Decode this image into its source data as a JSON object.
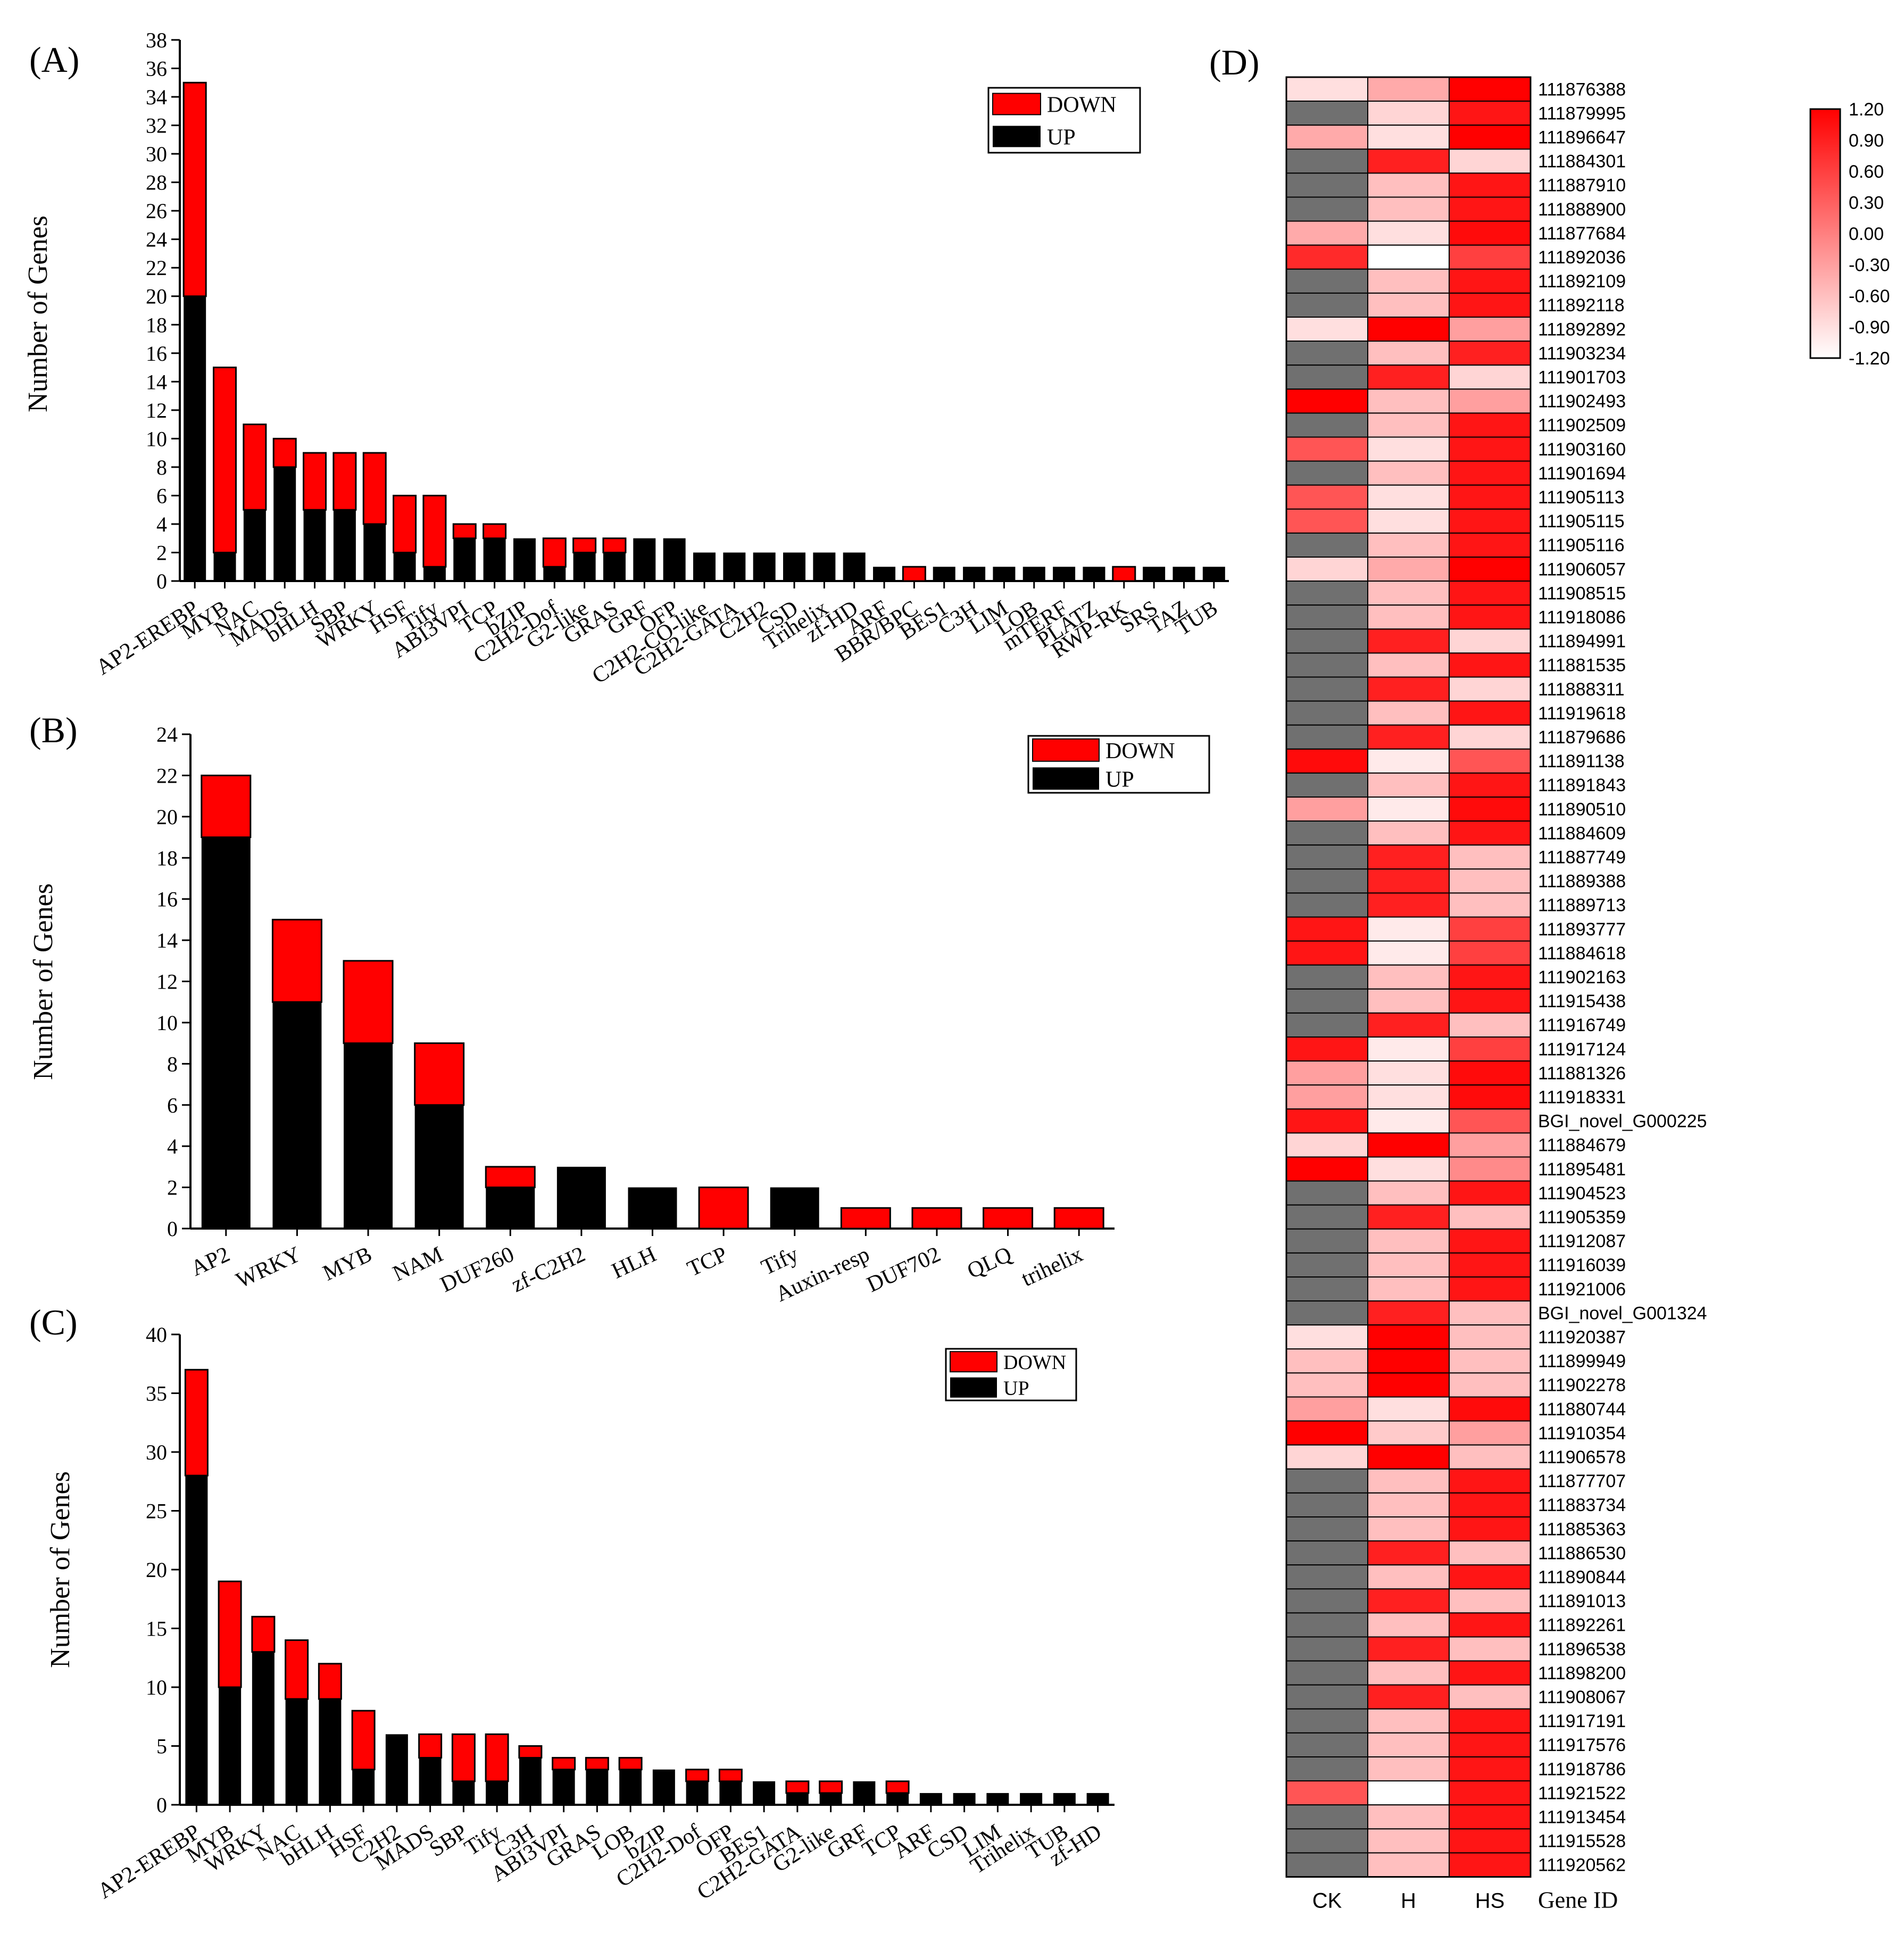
{
  "colors": {
    "up": "#000000",
    "down": "#ff0000",
    "missing": "#707070",
    "heat_high": "#ff0000",
    "heat_low": "#ffffff"
  },
  "chart_data": [
    {
      "panel": "(A)",
      "type": "bar",
      "stacked": true,
      "ylabel": "Number of Genes",
      "ylim": [
        0,
        38
      ],
      "yticks": [
        0,
        2,
        4,
        6,
        8,
        10,
        12,
        14,
        16,
        18,
        20,
        22,
        24,
        26,
        28,
        30,
        32,
        34,
        36,
        38
      ],
      "legend": {
        "position": "top-right",
        "entries": [
          "DOWN",
          "UP"
        ]
      },
      "categories": [
        "AP2-EREBP",
        "MYB",
        "NAC",
        "MADS",
        "bHLH",
        "SBP",
        "WRKY",
        "HSF",
        "Tify",
        "ABI3VPI",
        "TCP",
        "bZIP",
        "C2H2-Dof",
        "G2-like",
        "GRAS",
        "GRF",
        "OFP",
        "C2H2-CO-like",
        "C2H2-GATA",
        "C2H2",
        "CSD",
        "Trihelix",
        "zf-HD",
        "ARF",
        "BBR/BPC",
        "BES1",
        "C3H",
        "LIM",
        "LOB",
        "mTERF",
        "PLATZ",
        "RWP-RK",
        "SRS",
        "TAZ",
        "TUB"
      ],
      "series": [
        {
          "name": "UP",
          "values": [
            20,
            2,
            5,
            8,
            5,
            5,
            4,
            2,
            1,
            3,
            3,
            3,
            1,
            2,
            2,
            3,
            3,
            2,
            2,
            2,
            2,
            2,
            2,
            1,
            0,
            1,
            1,
            1,
            1,
            1,
            1,
            0,
            1,
            1,
            1
          ]
        },
        {
          "name": "DOWN",
          "values": [
            15,
            13,
            6,
            2,
            4,
            4,
            5,
            4,
            5,
            1,
            1,
            0,
            2,
            1,
            1,
            0,
            0,
            0,
            0,
            0,
            0,
            0,
            0,
            0,
            1,
            0,
            0,
            0,
            0,
            0,
            0,
            1,
            0,
            0,
            0
          ]
        }
      ]
    },
    {
      "panel": "(B)",
      "type": "bar",
      "stacked": true,
      "ylabel": "Number of Genes",
      "ylim": [
        0,
        24
      ],
      "yticks": [
        0,
        2,
        4,
        6,
        8,
        10,
        12,
        14,
        16,
        18,
        20,
        22,
        24
      ],
      "legend": {
        "position": "top-right",
        "entries": [
          "DOWN",
          "UP"
        ]
      },
      "categories": [
        "AP2",
        "WRKY",
        "MYB",
        "NAM",
        "DUF260",
        "zf-C2H2",
        "HLH",
        "TCP",
        "Tify",
        "Auxin-resp",
        "DUF702",
        "QLQ",
        "trihelix"
      ],
      "series": [
        {
          "name": "UP",
          "values": [
            19,
            11,
            9,
            6,
            2,
            3,
            2,
            0,
            2,
            0,
            0,
            0,
            0
          ]
        },
        {
          "name": "DOWN",
          "values": [
            3,
            4,
            4,
            3,
            1,
            0,
            0,
            2,
            0,
            1,
            1,
            1,
            1
          ]
        }
      ]
    },
    {
      "panel": "(C)",
      "type": "bar",
      "stacked": true,
      "ylabel": "Number of Genes",
      "ylim": [
        0,
        40
      ],
      "yticks": [
        0,
        5,
        10,
        15,
        20,
        25,
        30,
        35,
        40
      ],
      "legend": {
        "position": "top-right",
        "entries": [
          "DOWN",
          "UP"
        ]
      },
      "categories": [
        "AP2-EREBP",
        "MYB",
        "WRKY",
        "NAC",
        "bHLH",
        "HSF",
        "C2H2",
        "MADS",
        "SBP",
        "Tify",
        "C3H",
        "ABI3VPI",
        "GRAS",
        "LOB",
        "bZIP",
        "C2H2-Dof",
        "OFP",
        "BES1",
        "C2H2-GATA",
        "G2-like",
        "GRF",
        "TCP",
        "ARF",
        "CSD",
        "LIM",
        "Trihelix",
        "TUB",
        "zf-HD"
      ],
      "series": [
        {
          "name": "UP",
          "values": [
            28,
            10,
            13,
            9,
            9,
            3,
            6,
            4,
            2,
            2,
            4,
            3,
            3,
            3,
            3,
            2,
            2,
            2,
            1,
            1,
            2,
            1,
            1,
            1,
            1,
            1,
            1,
            1
          ]
        },
        {
          "name": "DOWN",
          "values": [
            9,
            9,
            3,
            5,
            3,
            5,
            0,
            2,
            4,
            4,
            1,
            1,
            1,
            1,
            0,
            1,
            1,
            0,
            1,
            1,
            0,
            1,
            0,
            0,
            0,
            0,
            0,
            0
          ]
        }
      ]
    },
    {
      "panel": "(D)",
      "type": "heatmap",
      "x_categories": [
        "CK",
        "H",
        "HS"
      ],
      "row_header": "Gene ID",
      "colorbar": {
        "ticks": [
          "1.20",
          "0.90",
          "0.60",
          "0.30",
          "0.00",
          "-0.30",
          "-0.60",
          "-0.90",
          "-1.20"
        ],
        "range": [
          -1.2,
          1.2
        ]
      },
      "rows": [
        "111876388",
        "111879995",
        "111896647",
        "111884301",
        "111887910",
        "111888900",
        "111877684",
        "111892036",
        "111892109",
        "111892118",
        "111892892",
        "111903234",
        "111901703",
        "111902493",
        "111902509",
        "111903160",
        "111901694",
        "111905113",
        "111905115",
        "111905116",
        "111906057",
        "111908515",
        "111918086",
        "111894991",
        "111881535",
        "111888311",
        "111919618",
        "111879686",
        "111891138",
        "111891843",
        "111890510",
        "111884609",
        "111887749",
        "111889388",
        "111889713",
        "111893777",
        "111884618",
        "111902163",
        "111915438",
        "111916749",
        "111917124",
        "111881326",
        "111918331",
        "BGI_novel_G000225",
        "111884679",
        "111895481",
        "111904523",
        "111905359",
        "111912087",
        "111916039",
        "111921006",
        "BGI_novel_G001324",
        "111920387",
        "111899949",
        "111902278",
        "111880744",
        "111910354",
        "111906578",
        "111877707",
        "111883734",
        "111885363",
        "111886530",
        "111890844",
        "111891013",
        "111892261",
        "111896538",
        "111898200",
        "111908067",
        "111917191",
        "111917576",
        "111918786",
        "111921522",
        "111913454",
        "111915528",
        "111920562"
      ],
      "values": [
        [
          -0.9,
          -0.4,
          1.2
        ],
        [
          null,
          -0.8,
          1.0
        ],
        [
          -0.4,
          -0.9,
          1.2
        ],
        [
          null,
          0.9,
          -0.8
        ],
        [
          null,
          -0.6,
          1.0
        ],
        [
          null,
          -0.6,
          1.0
        ],
        [
          -0.4,
          -0.9,
          1.1
        ],
        [
          0.8,
          -1.2,
          0.6
        ],
        [
          null,
          -0.6,
          1.0
        ],
        [
          null,
          -0.6,
          1.0
        ],
        [
          -0.9,
          1.2,
          -0.3
        ],
        [
          null,
          -0.6,
          0.9
        ],
        [
          null,
          0.9,
          -0.8
        ],
        [
          1.2,
          -0.6,
          -0.3
        ],
        [
          null,
          -0.6,
          1.0
        ],
        [
          0.4,
          -0.9,
          1.0
        ],
        [
          null,
          -0.6,
          1.0
        ],
        [
          0.4,
          -0.9,
          1.0
        ],
        [
          0.4,
          -0.9,
          1.0
        ],
        [
          null,
          -0.6,
          1.0
        ],
        [
          -0.8,
          -0.4,
          1.2
        ],
        [
          null,
          -0.6,
          1.0
        ],
        [
          null,
          -0.6,
          1.0
        ],
        [
          null,
          0.9,
          -0.8
        ],
        [
          null,
          -0.6,
          1.0
        ],
        [
          null,
          0.9,
          -0.8
        ],
        [
          null,
          -0.6,
          1.0
        ],
        [
          null,
          0.9,
          -0.8
        ],
        [
          1.1,
          -1.0,
          0.4
        ],
        [
          null,
          -0.6,
          1.0
        ],
        [
          -0.3,
          -1.0,
          1.1
        ],
        [
          null,
          -0.6,
          1.0
        ],
        [
          null,
          0.9,
          -0.6
        ],
        [
          null,
          0.9,
          -0.6
        ],
        [
          null,
          0.9,
          -0.6
        ],
        [
          1.0,
          -1.0,
          0.6
        ],
        [
          1.0,
          -1.0,
          0.6
        ],
        [
          null,
          -0.6,
          1.0
        ],
        [
          null,
          -0.6,
          1.0
        ],
        [
          null,
          0.9,
          -0.6
        ],
        [
          1.0,
          -1.0,
          0.6
        ],
        [
          -0.3,
          -0.9,
          1.1
        ],
        [
          -0.3,
          -0.9,
          1.1
        ],
        [
          1.0,
          -1.0,
          0.4
        ],
        [
          -0.8,
          1.2,
          -0.3
        ],
        [
          1.2,
          -0.9,
          -0.1
        ],
        [
          null,
          -0.6,
          1.0
        ],
        [
          null,
          0.9,
          -0.6
        ],
        [
          null,
          -0.6,
          1.0
        ],
        [
          null,
          -0.6,
          1.0
        ],
        [
          null,
          -0.6,
          1.0
        ],
        [
          null,
          0.9,
          -0.6
        ],
        [
          -0.9,
          1.2,
          -0.6
        ],
        [
          -0.6,
          1.2,
          -0.6
        ],
        [
          -0.6,
          1.2,
          -0.6
        ],
        [
          -0.3,
          -0.9,
          1.1
        ],
        [
          1.2,
          -0.7,
          -0.3
        ],
        [
          -0.8,
          1.2,
          -0.6
        ],
        [
          null,
          -0.6,
          1.0
        ],
        [
          null,
          -0.6,
          1.0
        ],
        [
          null,
          -0.6,
          1.0
        ],
        [
          null,
          0.9,
          -0.6
        ],
        [
          null,
          -0.6,
          1.0
        ],
        [
          null,
          0.9,
          -0.6
        ],
        [
          null,
          -0.6,
          1.0
        ],
        [
          null,
          0.9,
          -0.6
        ],
        [
          null,
          -0.6,
          1.0
        ],
        [
          null,
          0.9,
          -0.6
        ],
        [
          null,
          -0.6,
          1.0
        ],
        [
          null,
          -0.6,
          1.0
        ],
        [
          null,
          -0.6,
          1.0
        ],
        [
          0.4,
          -1.2,
          1.0
        ],
        [
          null,
          -0.6,
          1.0
        ],
        [
          null,
          -0.6,
          1.0
        ],
        [
          null,
          -0.6,
          1.0
        ]
      ]
    }
  ]
}
